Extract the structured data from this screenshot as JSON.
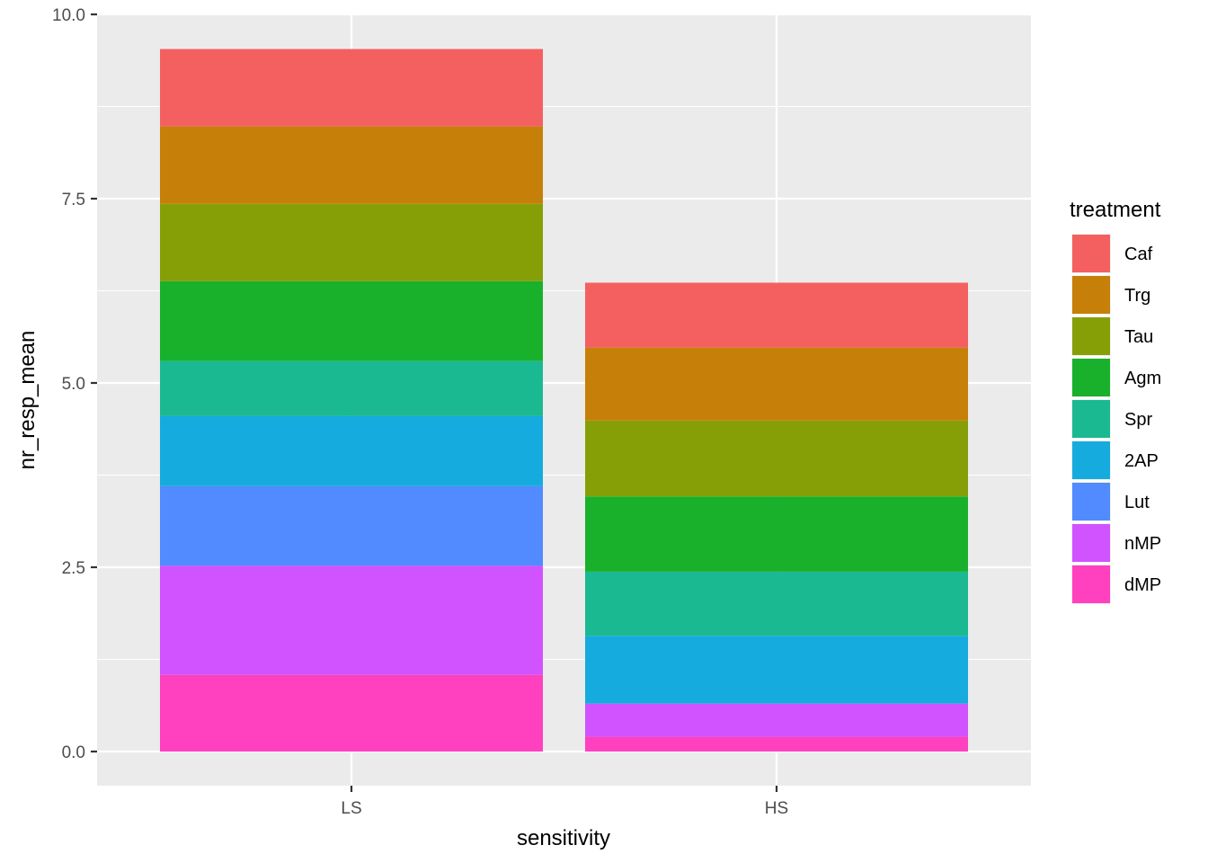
{
  "chart_data": {
    "type": "bar",
    "stacked": true,
    "categories": [
      "LS",
      "HS"
    ],
    "xlabel": "sensitivity",
    "ylabel": "nr_resp_mean",
    "ylim": [
      0,
      10
    ],
    "yticks": [
      "0.0",
      "2.5",
      "5.0",
      "7.5",
      "10.0"
    ],
    "grid": true,
    "legend": {
      "title": "treatment",
      "position": "right"
    },
    "series": [
      {
        "name": "dMP",
        "color": "#FF40BF",
        "values": [
          1.04,
          0.2
        ]
      },
      {
        "name": "nMP",
        "color": "#D152FF",
        "values": [
          1.48,
          0.45
        ]
      },
      {
        "name": "Lut",
        "color": "#528AFF",
        "values": [
          1.08,
          0.0
        ]
      },
      {
        "name": "2AP",
        "color": "#16ABDE",
        "values": [
          0.95,
          0.92
        ]
      },
      {
        "name": "Spr",
        "color": "#1BB992",
        "values": [
          0.75,
          0.87
        ]
      },
      {
        "name": "Agm",
        "color": "#19B12C",
        "values": [
          1.08,
          1.02
        ]
      },
      {
        "name": "Tau",
        "color": "#879F06",
        "values": [
          1.05,
          1.03
        ]
      },
      {
        "name": "Trg",
        "color": "#C68009",
        "values": [
          1.05,
          0.99
        ]
      },
      {
        "name": "Caf",
        "color": "#F46060",
        "values": [
          1.05,
          0.88
        ]
      }
    ]
  }
}
